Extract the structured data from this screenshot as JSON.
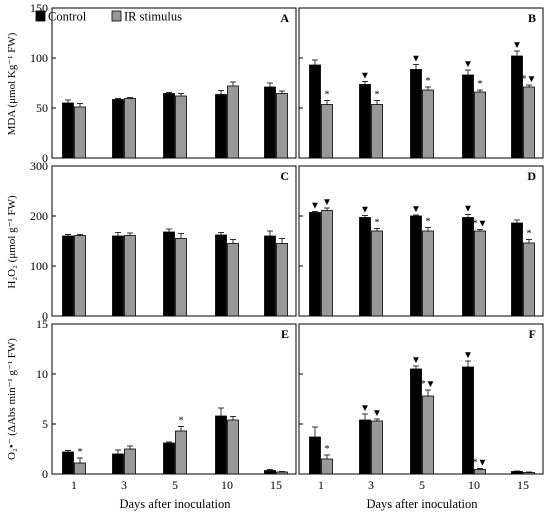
{
  "figure": {
    "legend": {
      "control": "Control",
      "ir": "IR stimulus"
    },
    "xlabel": "Days after inoculation",
    "colors": {
      "control": "#000000",
      "ir": "#999999"
    },
    "ylabels": {
      "mda": "MDA (μmol Kg⁻¹ FW)",
      "h2o2": "H₂O₂ (μmol g⁻¹ FW)",
      "o2": "O₂•⁻ (ΔAbs min⁻¹ g⁻¹ FW)"
    }
  },
  "chart_data": [
    {
      "panel": "A",
      "type": "bar",
      "row": "mda",
      "categories": [
        "1",
        "3",
        "5",
        "10",
        "15"
      ],
      "ylim": [
        0,
        150
      ],
      "yticks": [
        0,
        50,
        100,
        150
      ],
      "series": [
        {
          "name": "Control",
          "values": [
            55,
            58.5,
            64.5,
            63.5,
            71
          ],
          "errors": [
            3,
            1,
            1,
            4,
            4
          ]
        },
        {
          "name": "IR stimulus",
          "values": [
            51,
            59.5,
            62,
            72,
            64.5
          ],
          "errors": [
            3.5,
            1,
            2.5,
            4,
            2.5
          ]
        }
      ],
      "annotations": {
        "control": [
          "",
          "",
          "",
          "",
          ""
        ],
        "ir": [
          "",
          "",
          "",
          "",
          ""
        ]
      }
    },
    {
      "panel": "B",
      "type": "bar",
      "row": "mda",
      "categories": [
        "1",
        "3",
        "5",
        "10",
        "15"
      ],
      "ylim": [
        0,
        150
      ],
      "yticks": [
        0,
        50,
        100,
        150
      ],
      "series": [
        {
          "name": "Control",
          "values": [
            93,
            73.5,
            88.5,
            83,
            102
          ],
          "errors": [
            5,
            3,
            5,
            5,
            5
          ]
        },
        {
          "name": "IR stimulus",
          "values": [
            53.5,
            53.5,
            68,
            66,
            71
          ],
          "errors": [
            4,
            4,
            3,
            2,
            2
          ]
        }
      ],
      "annotations": {
        "control": [
          "",
          "▼",
          "▼",
          "▼",
          "▼"
        ],
        "ir": [
          "*",
          "*",
          "*",
          "*",
          "*▼"
        ]
      }
    },
    {
      "panel": "C",
      "type": "bar",
      "row": "h2o2",
      "categories": [
        "1",
        "3",
        "5",
        "10",
        "15"
      ],
      "ylim": [
        0,
        300
      ],
      "yticks": [
        0,
        100,
        200,
        300
      ],
      "series": [
        {
          "name": "Control",
          "values": [
            160,
            160,
            168,
            162,
            160
          ],
          "errors": [
            3,
            7,
            6,
            5,
            10
          ]
        },
        {
          "name": "IR stimulus",
          "values": [
            161,
            161,
            155,
            145,
            145
          ],
          "errors": [
            2,
            5,
            10,
            8,
            10
          ]
        }
      ],
      "annotations": {
        "control": [
          "",
          "",
          "",
          "",
          ""
        ],
        "ir": [
          "",
          "",
          "",
          "",
          ""
        ]
      }
    },
    {
      "panel": "D",
      "type": "bar",
      "row": "h2o2",
      "categories": [
        "1",
        "3",
        "5",
        "10",
        "15"
      ],
      "ylim": [
        0,
        300
      ],
      "yticks": [
        0,
        100,
        200,
        300
      ],
      "series": [
        {
          "name": "Control",
          "values": [
            207,
            197,
            200,
            197,
            186
          ],
          "errors": [
            2,
            4,
            2,
            6,
            6
          ]
        },
        {
          "name": "IR stimulus",
          "values": [
            211,
            170,
            170,
            170,
            146
          ],
          "errors": [
            5,
            5,
            7,
            3,
            7
          ]
        }
      ],
      "annotations": {
        "control": [
          "▼",
          "▼",
          "▼",
          "▼",
          ""
        ],
        "ir": [
          "▼",
          "*",
          "*",
          "*▼",
          "*"
        ]
      }
    },
    {
      "panel": "E",
      "type": "bar",
      "row": "o2",
      "categories": [
        "1",
        "3",
        "5",
        "10",
        "15"
      ],
      "ylim": [
        0,
        15
      ],
      "yticks": [
        0,
        5,
        10,
        15
      ],
      "series": [
        {
          "name": "Control",
          "values": [
            2.2,
            2.0,
            3.1,
            5.8,
            0.35
          ],
          "errors": [
            0.15,
            0.4,
            0.1,
            0.8,
            0.1
          ]
        },
        {
          "name": "IR stimulus",
          "values": [
            1.1,
            2.5,
            4.3,
            5.4,
            0.2
          ],
          "errors": [
            0.5,
            0.3,
            0.45,
            0.35,
            0.05
          ]
        }
      ],
      "annotations": {
        "control": [
          "",
          "",
          "",
          "",
          ""
        ],
        "ir": [
          "*",
          "",
          "*",
          "",
          ""
        ]
      }
    },
    {
      "panel": "F",
      "type": "bar",
      "row": "o2",
      "categories": [
        "1",
        "3",
        "5",
        "10",
        "15"
      ],
      "ylim": [
        0,
        15
      ],
      "yticks": [
        0,
        5,
        10,
        15
      ],
      "series": [
        {
          "name": "Control",
          "values": [
            3.7,
            5.4,
            10.5,
            10.7,
            0.25
          ],
          "errors": [
            1.0,
            0.6,
            0.3,
            0.6,
            0.05
          ]
        },
        {
          "name": "IR stimulus",
          "values": [
            1.5,
            5.3,
            7.8,
            0.45,
            0.15
          ],
          "errors": [
            0.4,
            0.2,
            0.6,
            0.1,
            0.05
          ]
        }
      ],
      "annotations": {
        "control": [
          "",
          "▼",
          "▼",
          "▼",
          ""
        ],
        "ir": [
          "*",
          "▼",
          "*▼",
          "*▼",
          ""
        ]
      }
    }
  ]
}
